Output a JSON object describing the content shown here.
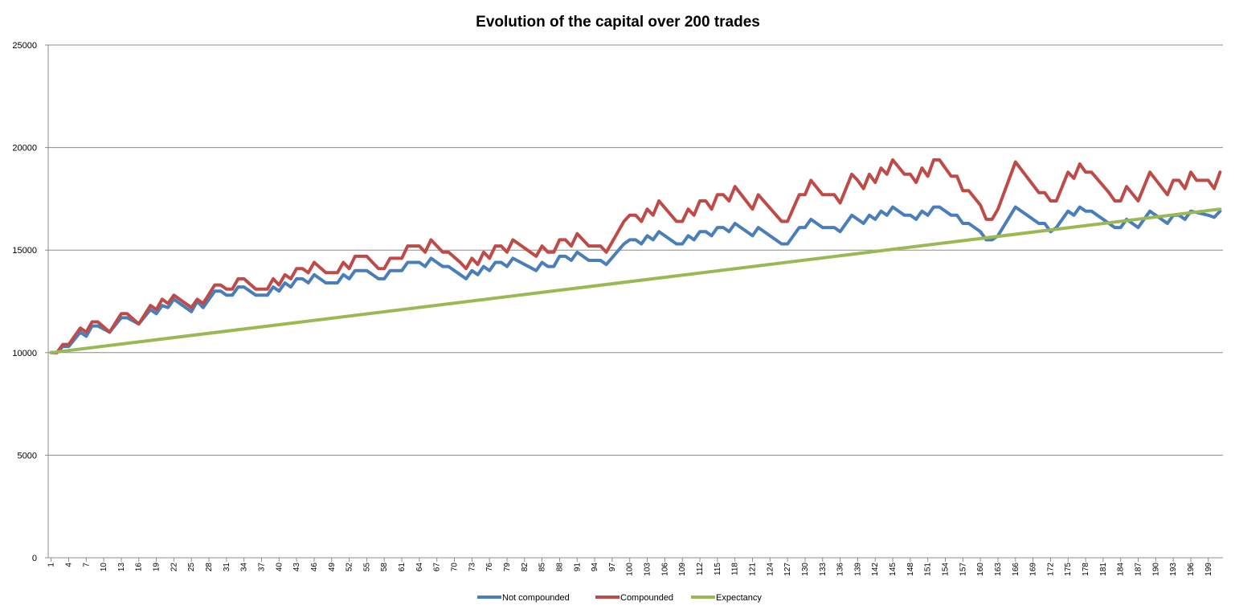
{
  "chart_data": {
    "type": "line",
    "title": "Evolution of the capital over 200 trades",
    "xlabel": "",
    "ylabel": "",
    "ylim": [
      0,
      25000
    ],
    "y_ticks": [
      0,
      5000,
      10000,
      15000,
      20000,
      25000
    ],
    "x_ticks": [
      1,
      4,
      7,
      10,
      13,
      16,
      19,
      22,
      25,
      28,
      31,
      34,
      37,
      40,
      43,
      46,
      49,
      52,
      55,
      58,
      61,
      64,
      67,
      70,
      73,
      76,
      79,
      82,
      85,
      88,
      91,
      94,
      97,
      100,
      103,
      106,
      109,
      112,
      115,
      118,
      121,
      124,
      127,
      130,
      133,
      136,
      139,
      142,
      145,
      148,
      151,
      154,
      157,
      160,
      163,
      166,
      169,
      172,
      175,
      178,
      181,
      184,
      187,
      190,
      193,
      196,
      199
    ],
    "grid": "horizontal",
    "legend_position": "bottom",
    "colors": {
      "Not compounded": "#4a7ebb",
      "Compounded": "#be4b48",
      "Expectancy": "#98b954"
    },
    "series": [
      {
        "name": "Not compounded",
        "anchors": [
          [
            1,
            10000
          ],
          [
            2,
            10000
          ],
          [
            3,
            10300
          ],
          [
            4,
            10300
          ],
          [
            6,
            11000
          ],
          [
            7,
            10800
          ],
          [
            8,
            11300
          ],
          [
            9,
            11300
          ],
          [
            11,
            11000
          ],
          [
            13,
            11700
          ],
          [
            14,
            11700
          ],
          [
            16,
            11400
          ],
          [
            18,
            12100
          ],
          [
            19,
            11900
          ],
          [
            20,
            12300
          ],
          [
            21,
            12200
          ],
          [
            22,
            12600
          ],
          [
            25,
            12000
          ],
          [
            26,
            12500
          ],
          [
            27,
            12200
          ],
          [
            29,
            13000
          ],
          [
            30,
            13000
          ],
          [
            31,
            12800
          ],
          [
            32,
            12800
          ],
          [
            33,
            13200
          ],
          [
            34,
            13200
          ],
          [
            36,
            12800
          ],
          [
            38,
            12800
          ],
          [
            39,
            13200
          ],
          [
            40,
            13000
          ],
          [
            41,
            13400
          ],
          [
            42,
            13200
          ],
          [
            43,
            13600
          ],
          [
            44,
            13600
          ],
          [
            45,
            13400
          ],
          [
            46,
            13800
          ],
          [
            48,
            13400
          ],
          [
            50,
            13400
          ],
          [
            51,
            13800
          ],
          [
            52,
            13600
          ],
          [
            53,
            14000
          ],
          [
            55,
            14000
          ],
          [
            57,
            13600
          ],
          [
            58,
            13600
          ],
          [
            59,
            14000
          ],
          [
            61,
            14000
          ],
          [
            62,
            14400
          ],
          [
            64,
            14400
          ],
          [
            65,
            14200
          ],
          [
            66,
            14600
          ],
          [
            68,
            14200
          ],
          [
            69,
            14200
          ],
          [
            71,
            13800
          ],
          [
            72,
            13600
          ],
          [
            73,
            14000
          ],
          [
            74,
            13800
          ],
          [
            75,
            14200
          ],
          [
            76,
            14000
          ],
          [
            77,
            14400
          ],
          [
            78,
            14400
          ],
          [
            79,
            14200
          ],
          [
            80,
            14600
          ],
          [
            84,
            14000
          ],
          [
            85,
            14400
          ],
          [
            86,
            14200
          ],
          [
            87,
            14200
          ],
          [
            88,
            14700
          ],
          [
            89,
            14700
          ],
          [
            90,
            14500
          ],
          [
            91,
            14900
          ],
          [
            93,
            14500
          ],
          [
            95,
            14500
          ],
          [
            96,
            14300
          ],
          [
            99,
            15300
          ],
          [
            100,
            15500
          ],
          [
            101,
            15500
          ],
          [
            102,
            15300
          ],
          [
            103,
            15700
          ],
          [
            104,
            15500
          ],
          [
            105,
            15900
          ],
          [
            108,
            15300
          ],
          [
            109,
            15300
          ],
          [
            110,
            15700
          ],
          [
            111,
            15500
          ],
          [
            112,
            15900
          ],
          [
            113,
            15900
          ],
          [
            114,
            15700
          ],
          [
            115,
            16100
          ],
          [
            116,
            16100
          ],
          [
            117,
            15900
          ],
          [
            118,
            16300
          ],
          [
            121,
            15700
          ],
          [
            122,
            16100
          ],
          [
            126,
            15300
          ],
          [
            127,
            15300
          ],
          [
            129,
            16100
          ],
          [
            130,
            16100
          ],
          [
            131,
            16500
          ],
          [
            133,
            16100
          ],
          [
            135,
            16100
          ],
          [
            136,
            15900
          ],
          [
            138,
            16700
          ],
          [
            139,
            16500
          ],
          [
            140,
            16300
          ],
          [
            141,
            16700
          ],
          [
            142,
            16500
          ],
          [
            143,
            16900
          ],
          [
            144,
            16700
          ],
          [
            145,
            17100
          ],
          [
            147,
            16700
          ],
          [
            148,
            16700
          ],
          [
            149,
            16500
          ],
          [
            150,
            16900
          ],
          [
            151,
            16700
          ],
          [
            152,
            17100
          ],
          [
            153,
            17100
          ],
          [
            155,
            16700
          ],
          [
            156,
            16700
          ],
          [
            157,
            16300
          ],
          [
            158,
            16300
          ],
          [
            160,
            15900
          ],
          [
            161,
            15500
          ],
          [
            162,
            15500
          ],
          [
            163,
            15700
          ],
          [
            166,
            17100
          ],
          [
            170,
            16300
          ],
          [
            171,
            16300
          ],
          [
            172,
            15900
          ],
          [
            173,
            16100
          ],
          [
            175,
            16900
          ],
          [
            176,
            16700
          ],
          [
            177,
            17100
          ],
          [
            178,
            16900
          ],
          [
            179,
            16900
          ],
          [
            182,
            16300
          ],
          [
            183,
            16100
          ],
          [
            184,
            16100
          ],
          [
            185,
            16500
          ],
          [
            187,
            16100
          ],
          [
            189,
            16900
          ],
          [
            192,
            16300
          ],
          [
            193,
            16700
          ],
          [
            194,
            16700
          ],
          [
            195,
            16500
          ],
          [
            196,
            16900
          ],
          [
            199,
            16700
          ],
          [
            200,
            16600
          ],
          [
            201,
            16900
          ]
        ]
      },
      {
        "name": "Compounded",
        "anchors": [
          [
            1,
            10000
          ],
          [
            2,
            10000
          ],
          [
            3,
            10400
          ],
          [
            4,
            10400
          ],
          [
            6,
            11200
          ],
          [
            7,
            11000
          ],
          [
            8,
            11500
          ],
          [
            9,
            11500
          ],
          [
            11,
            11000
          ],
          [
            13,
            11900
          ],
          [
            14,
            11900
          ],
          [
            16,
            11400
          ],
          [
            18,
            12300
          ],
          [
            19,
            12100
          ],
          [
            20,
            12600
          ],
          [
            21,
            12400
          ],
          [
            22,
            12800
          ],
          [
            25,
            12200
          ],
          [
            26,
            12600
          ],
          [
            27,
            12400
          ],
          [
            29,
            13300
          ],
          [
            30,
            13300
          ],
          [
            31,
            13100
          ],
          [
            32,
            13100
          ],
          [
            33,
            13600
          ],
          [
            34,
            13600
          ],
          [
            36,
            13100
          ],
          [
            38,
            13100
          ],
          [
            39,
            13600
          ],
          [
            40,
            13300
          ],
          [
            41,
            13800
          ],
          [
            42,
            13600
          ],
          [
            43,
            14100
          ],
          [
            44,
            14100
          ],
          [
            45,
            13900
          ],
          [
            46,
            14400
          ],
          [
            48,
            13900
          ],
          [
            50,
            13900
          ],
          [
            51,
            14400
          ],
          [
            52,
            14100
          ],
          [
            53,
            14700
          ],
          [
            55,
            14700
          ],
          [
            57,
            14100
          ],
          [
            58,
            14100
          ],
          [
            59,
            14600
          ],
          [
            61,
            14600
          ],
          [
            62,
            15200
          ],
          [
            64,
            15200
          ],
          [
            65,
            14900
          ],
          [
            66,
            15500
          ],
          [
            68,
            14900
          ],
          [
            69,
            14900
          ],
          [
            71,
            14400
          ],
          [
            72,
            14100
          ],
          [
            73,
            14600
          ],
          [
            74,
            14300
          ],
          [
            75,
            14900
          ],
          [
            76,
            14600
          ],
          [
            77,
            15200
          ],
          [
            78,
            15200
          ],
          [
            79,
            14900
          ],
          [
            80,
            15500
          ],
          [
            84,
            14700
          ],
          [
            85,
            15200
          ],
          [
            86,
            14900
          ],
          [
            87,
            14900
          ],
          [
            88,
            15500
          ],
          [
            89,
            15500
          ],
          [
            90,
            15200
          ],
          [
            91,
            15800
          ],
          [
            93,
            15200
          ],
          [
            95,
            15200
          ],
          [
            96,
            14900
          ],
          [
            99,
            16400
          ],
          [
            100,
            16700
          ],
          [
            101,
            16700
          ],
          [
            102,
            16400
          ],
          [
            103,
            17000
          ],
          [
            104,
            16700
          ],
          [
            105,
            17400
          ],
          [
            108,
            16400
          ],
          [
            109,
            16400
          ],
          [
            110,
            17000
          ],
          [
            111,
            16700
          ],
          [
            112,
            17400
          ],
          [
            113,
            17400
          ],
          [
            114,
            17000
          ],
          [
            115,
            17700
          ],
          [
            116,
            17700
          ],
          [
            117,
            17400
          ],
          [
            118,
            18100
          ],
          [
            121,
            17000
          ],
          [
            122,
            17700
          ],
          [
            126,
            16400
          ],
          [
            127,
            16400
          ],
          [
            129,
            17700
          ],
          [
            130,
            17700
          ],
          [
            131,
            18400
          ],
          [
            133,
            17700
          ],
          [
            135,
            17700
          ],
          [
            136,
            17300
          ],
          [
            138,
            18700
          ],
          [
            139,
            18400
          ],
          [
            140,
            18000
          ],
          [
            141,
            18700
          ],
          [
            142,
            18300
          ],
          [
            143,
            19000
          ],
          [
            144,
            18700
          ],
          [
            145,
            19400
          ],
          [
            147,
            18700
          ],
          [
            148,
            18700
          ],
          [
            149,
            18300
          ],
          [
            150,
            19000
          ],
          [
            151,
            18600
          ],
          [
            152,
            19400
          ],
          [
            153,
            19400
          ],
          [
            155,
            18600
          ],
          [
            156,
            18600
          ],
          [
            157,
            17900
          ],
          [
            158,
            17900
          ],
          [
            160,
            17200
          ],
          [
            161,
            16500
          ],
          [
            162,
            16500
          ],
          [
            163,
            17000
          ],
          [
            166,
            19300
          ],
          [
            170,
            17800
          ],
          [
            171,
            17800
          ],
          [
            172,
            17400
          ],
          [
            173,
            17400
          ],
          [
            175,
            18800
          ],
          [
            176,
            18500
          ],
          [
            177,
            19200
          ],
          [
            178,
            18800
          ],
          [
            179,
            18800
          ],
          [
            182,
            17800
          ],
          [
            183,
            17400
          ],
          [
            184,
            17400
          ],
          [
            185,
            18100
          ],
          [
            187,
            17400
          ],
          [
            189,
            18800
          ],
          [
            192,
            17700
          ],
          [
            193,
            18400
          ],
          [
            194,
            18400
          ],
          [
            195,
            18000
          ],
          [
            196,
            18800
          ],
          [
            197,
            18400
          ],
          [
            199,
            18400
          ],
          [
            200,
            18000
          ],
          [
            201,
            18800
          ]
        ]
      },
      {
        "name": "Expectancy",
        "anchors": [
          [
            1,
            10000
          ],
          [
            201,
            17000
          ]
        ]
      }
    ]
  }
}
